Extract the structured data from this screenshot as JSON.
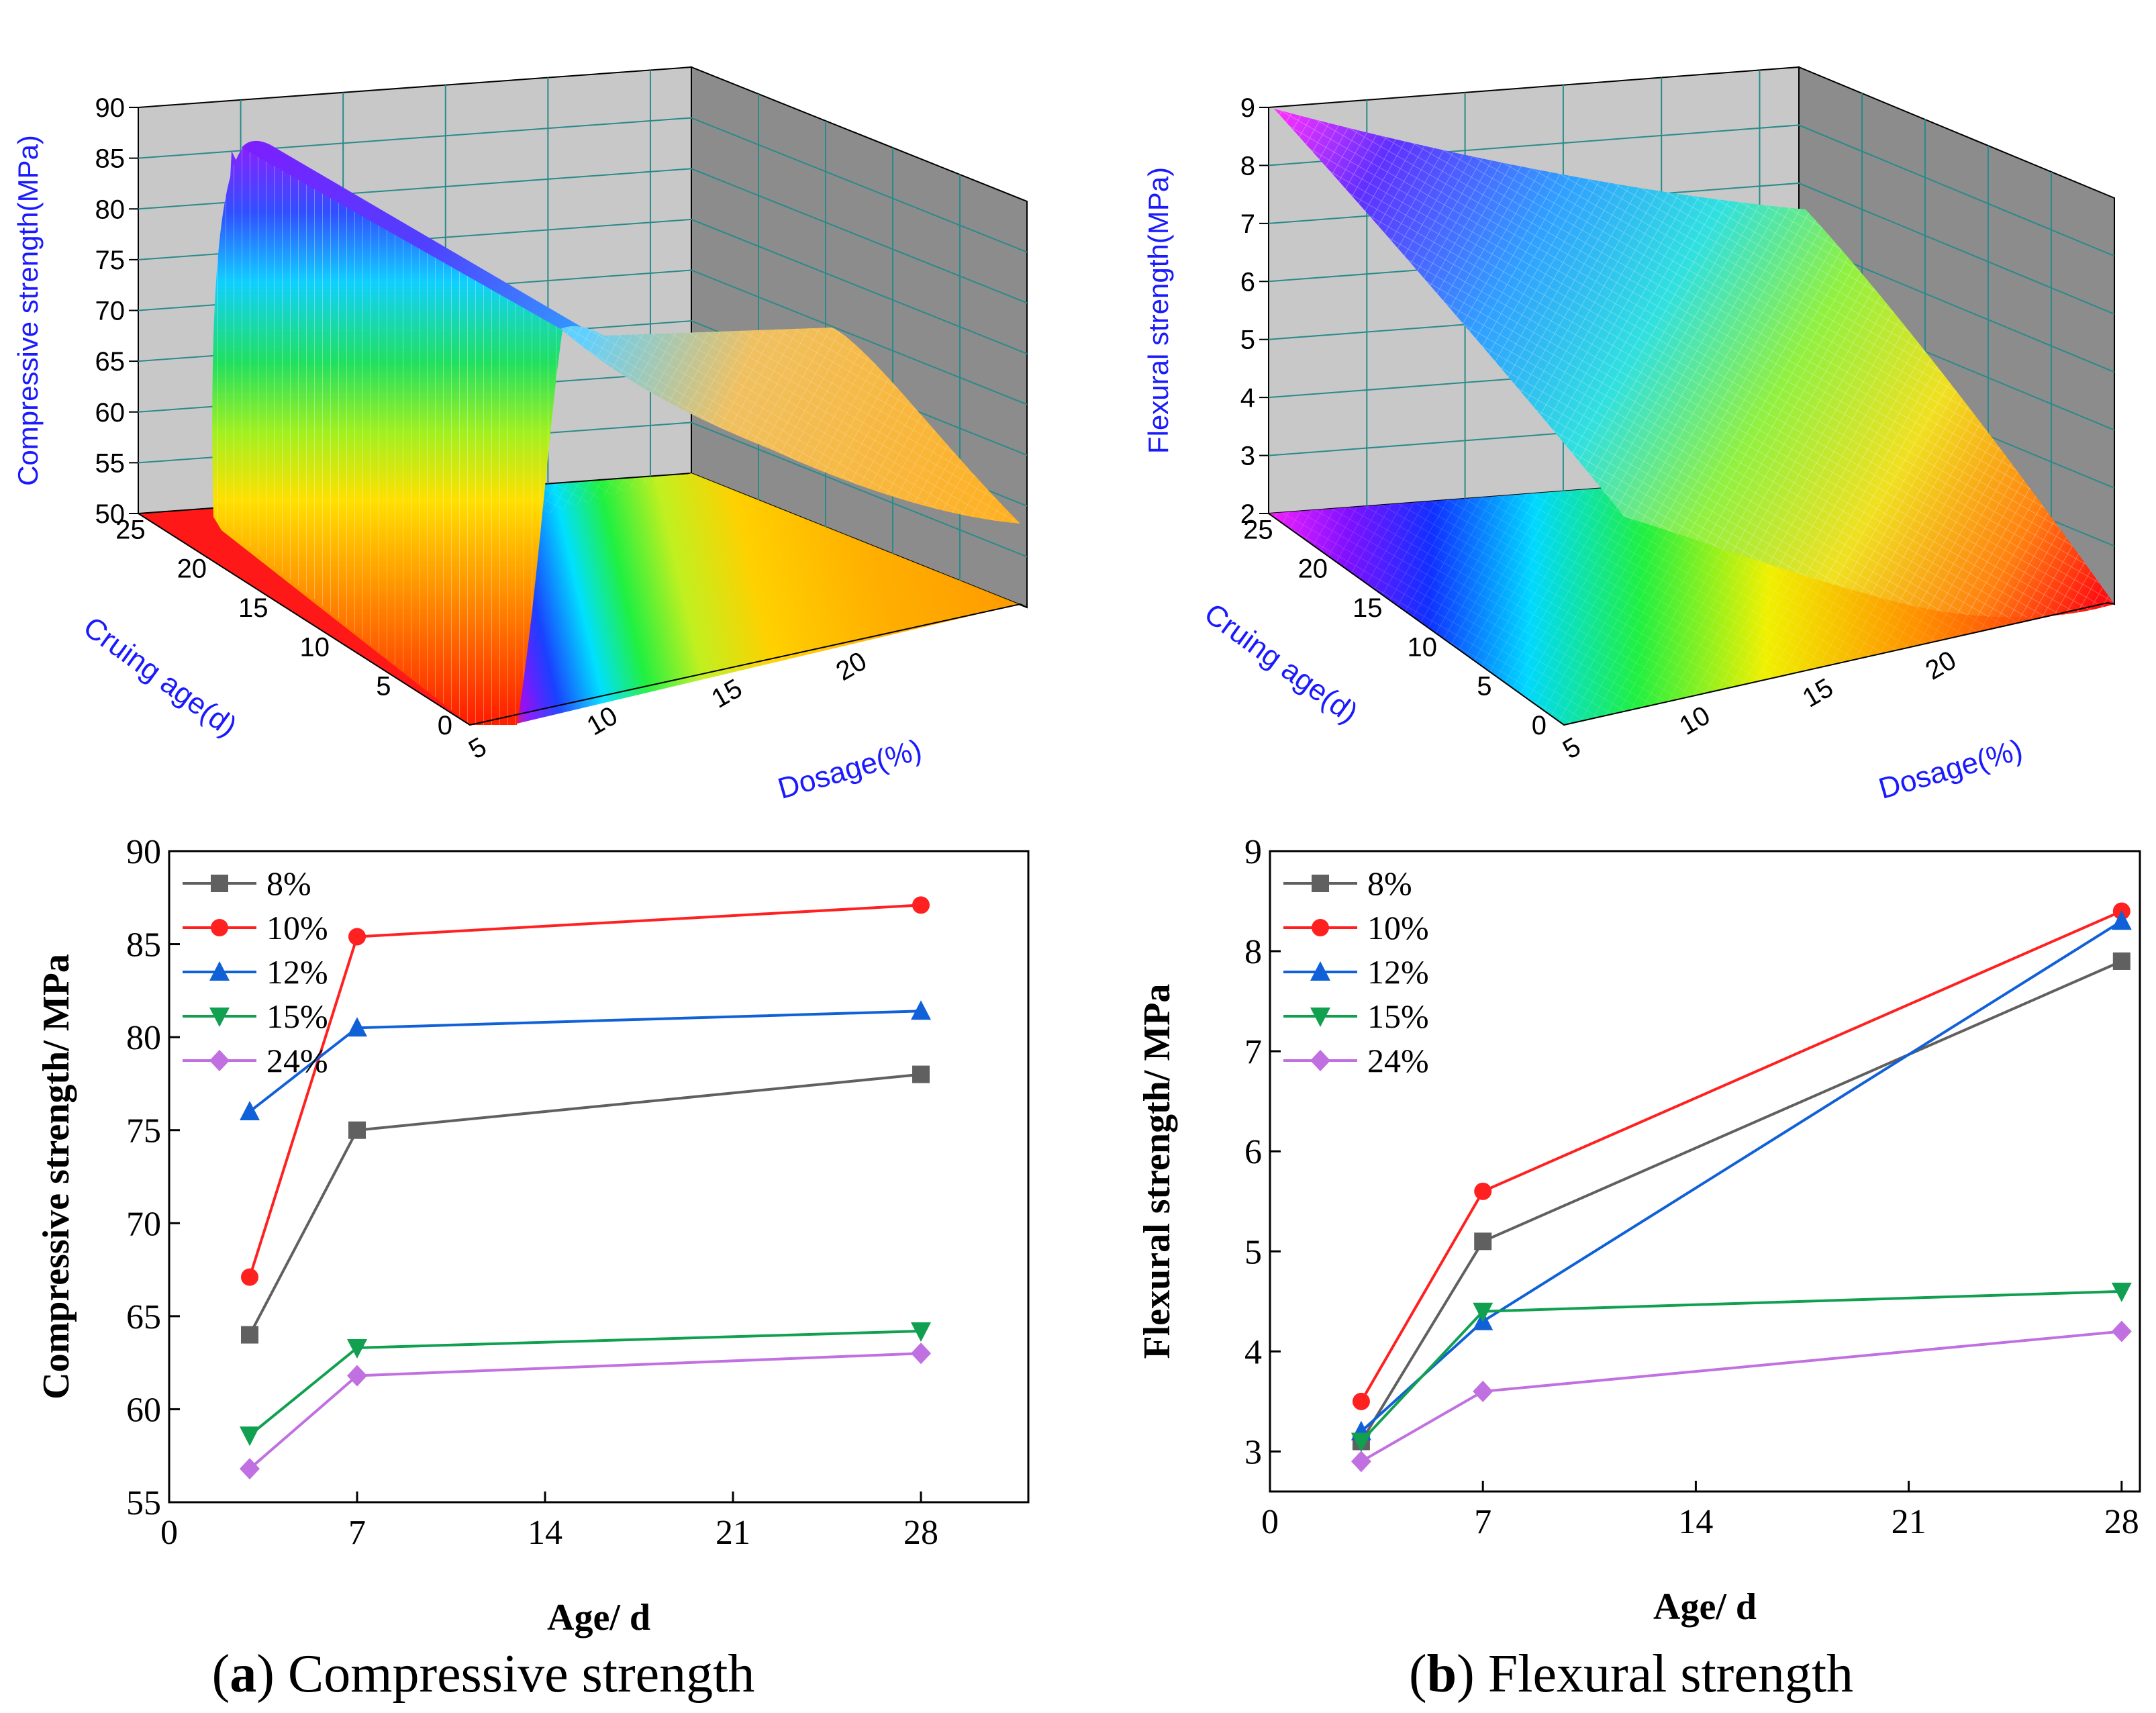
{
  "colors": {
    "s8": "#606060",
    "s10": "#ff2020",
    "s12": "#1060d8",
    "s15": "#10a050",
    "s24": "#c070e0",
    "axis_blue": "#1a1aff",
    "wall": "#c8c8c8",
    "wall_grid": "#2a8a8a"
  },
  "captions": {
    "a_letter": "a",
    "a_text": " Compressive strength",
    "b_letter": "b",
    "b_text": " Flexural strength"
  },
  "chart_data": [
    {
      "id": "surface_compressive",
      "type": "surface3d",
      "zlabel": "Compressive strength(MPa)",
      "ylabel": "Cruing age(d)",
      "xlabel": "Dosage(%)",
      "zticks": [
        "50",
        "55",
        "60",
        "65",
        "70",
        "75",
        "80",
        "85",
        "90"
      ],
      "yticks": [
        "0",
        "5",
        "10",
        "15",
        "20",
        "25"
      ],
      "xticks": [
        "5",
        "10",
        "15",
        "20"
      ],
      "zlim": [
        50,
        90
      ],
      "ylim": [
        0,
        28
      ],
      "xlim": [
        5,
        24
      ]
    },
    {
      "id": "surface_flexural",
      "type": "surface3d",
      "zlabel": "Flexural strength(MPa)",
      "ylabel": "Cruing age(d)",
      "xlabel": "Dosage(%)",
      "zticks": [
        "2",
        "3",
        "4",
        "5",
        "6",
        "7",
        "8",
        "9"
      ],
      "yticks": [
        "0",
        "5",
        "10",
        "15",
        "20",
        "25"
      ],
      "xticks": [
        "5",
        "10",
        "15",
        "20"
      ],
      "zlim": [
        2,
        9
      ],
      "ylim": [
        0,
        28
      ],
      "xlim": [
        5,
        24
      ]
    },
    {
      "id": "line_compressive",
      "type": "line",
      "xlabel": "Age/  d",
      "ylabel": "Compressive strength/  MPa",
      "xlim": [
        0,
        32
      ],
      "ylim": [
        55,
        90
      ],
      "xticks": [
        0,
        7,
        14,
        21,
        28
      ],
      "yticks": [
        55,
        60,
        65,
        70,
        75,
        80,
        85,
        90
      ],
      "x": [
        3,
        7,
        28
      ],
      "series": [
        {
          "name": "8%",
          "values": [
            64,
            75,
            78
          ],
          "marker": "square",
          "color": "#606060"
        },
        {
          "name": "10%",
          "values": [
            67.1,
            85.4,
            87.1
          ],
          "marker": "circle",
          "color": "#ff2020"
        },
        {
          "name": "12%",
          "values": [
            76,
            80.5,
            81.4
          ],
          "marker": "triangle-up",
          "color": "#1060d8"
        },
        {
          "name": "15%",
          "values": [
            58.6,
            63.3,
            64.2
          ],
          "marker": "triangle-down",
          "color": "#10a050"
        },
        {
          "name": "24%",
          "values": [
            56.8,
            61.8,
            63
          ],
          "marker": "diamond",
          "color": "#c070e0"
        }
      ]
    },
    {
      "id": "line_flexural",
      "type": "line",
      "xlabel": "Age/  d",
      "ylabel": "Flexural strength/  MPa",
      "xlim": [
        0,
        28.6
      ],
      "ylim": [
        2.6,
        9
      ],
      "xticks": [
        0,
        7,
        14,
        21,
        28
      ],
      "yticks": [
        3,
        4,
        5,
        6,
        7,
        8,
        9
      ],
      "x": [
        3,
        7,
        28
      ],
      "series": [
        {
          "name": "8%",
          "values": [
            3.1,
            5.1,
            7.9
          ],
          "marker": "square",
          "color": "#606060"
        },
        {
          "name": "10%",
          "values": [
            3.5,
            5.6,
            8.4
          ],
          "marker": "circle",
          "color": "#ff2020"
        },
        {
          "name": "12%",
          "values": [
            3.2,
            4.3,
            8.3
          ],
          "marker": "triangle-up",
          "color": "#1060d8"
        },
        {
          "name": "15%",
          "values": [
            3.1,
            4.4,
            4.6
          ],
          "marker": "triangle-down",
          "color": "#10a050"
        },
        {
          "name": "24%",
          "values": [
            2.9,
            3.6,
            4.2
          ],
          "marker": "diamond",
          "color": "#c070e0"
        }
      ]
    }
  ]
}
